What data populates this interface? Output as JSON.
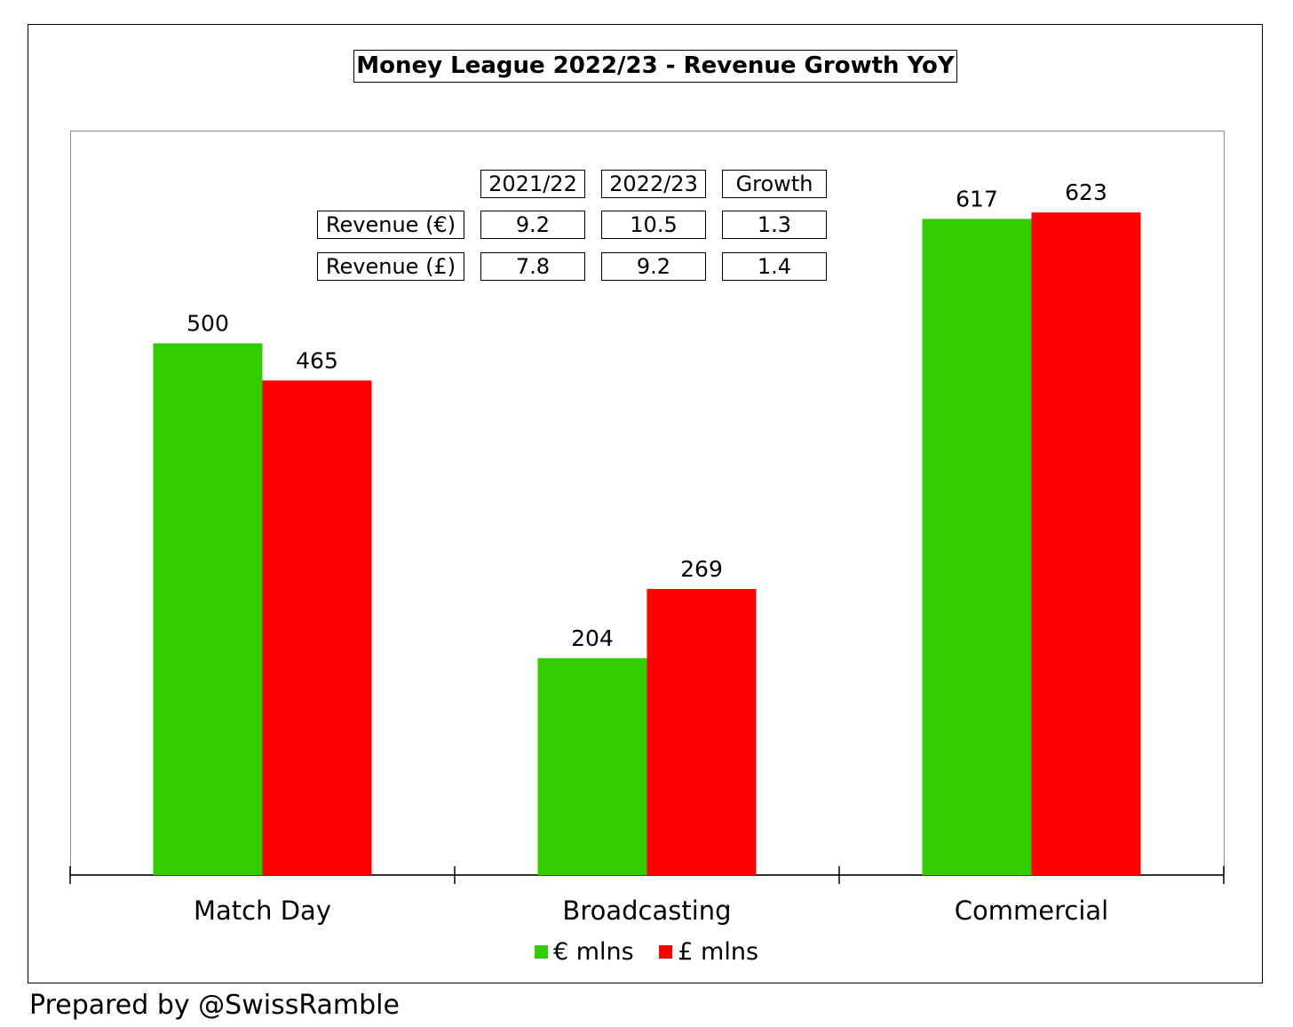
{
  "chart_data": {
    "type": "bar",
    "title": "Money League 2022/23 - Revenue Growth YoY",
    "categories": [
      "Match Day",
      "Broadcasting",
      "Commercial"
    ],
    "series": [
      {
        "name": "€ mlns",
        "color": "#33cc00",
        "values": [
          500,
          204,
          617
        ]
      },
      {
        "name": "£ mlns",
        "color": "#ff0000",
        "values": [
          465,
          269,
          623
        ]
      }
    ],
    "ylim": [
      0,
      700
    ],
    "grid": false,
    "legend_position": "bottom",
    "table": {
      "headers": [
        "2021/22",
        "2022/23",
        "Growth"
      ],
      "rows": [
        {
          "label": "Revenue (€)",
          "values": [
            "9.2",
            "10.5",
            "1.3"
          ]
        },
        {
          "label": "Revenue (£)",
          "values": [
            "7.8",
            "9.2",
            "1.4"
          ]
        }
      ]
    }
  },
  "footer": "Prepared by @SwissRamble"
}
